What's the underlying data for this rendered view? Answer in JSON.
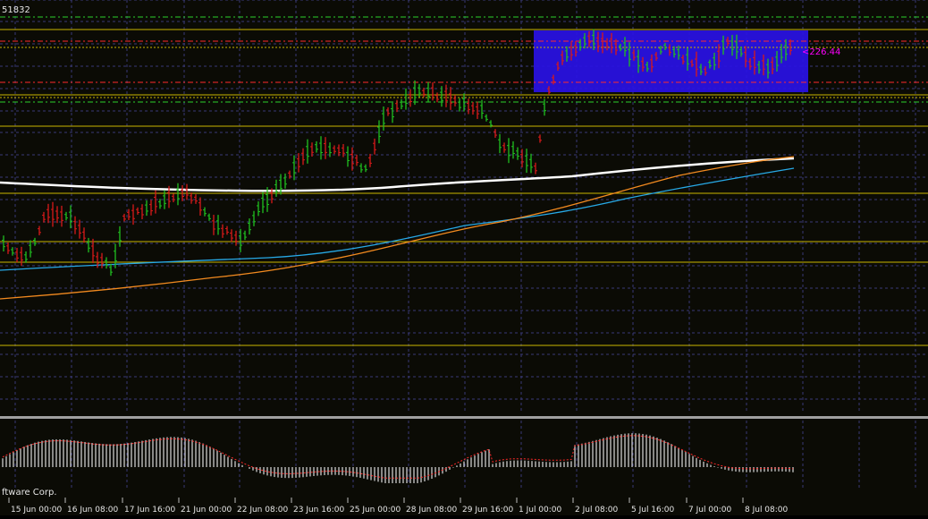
{
  "window": {
    "title_fragment": "51832",
    "copyright_fragment": "ftware Corp."
  },
  "colors": {
    "background": "#0b0b05",
    "grid": "#3a3a78",
    "bull": "#1fbf1f",
    "bear": "#d81a1a",
    "horizontal_level": "#c8b400",
    "rectangle_fill": "#2a12e6",
    "ma_white": "#ffffff",
    "ma_blue": "#27a9e6",
    "ma_orange": "#f28a1f",
    "resistance_red": "#ff2a2a",
    "resistance_green": "#2bd12b",
    "oscillator_bar": "#dcdcdc",
    "oscillator_signal": "#ff2a2a",
    "price_label": "#ff00ff"
  },
  "main_chart": {
    "price_label": "226.44",
    "x_axis_labels": [
      "15 Jun 00:00",
      "16 Jun 08:00",
      "17 Jun 16:00",
      "21 Jun 00:00",
      "22 Jun 08:00",
      "23 Jun 16:00",
      "25 Jun 00:00",
      "28 Jun 08:00",
      "29 Jun 16:00",
      "1 Jul 00:00",
      "2 Jul 08:00",
      "5 Jul 16:00",
      "7 Jul 00:00",
      "8 Jul 08:00"
    ]
  },
  "oscillator": {
    "signal_style": "dotted"
  }
}
